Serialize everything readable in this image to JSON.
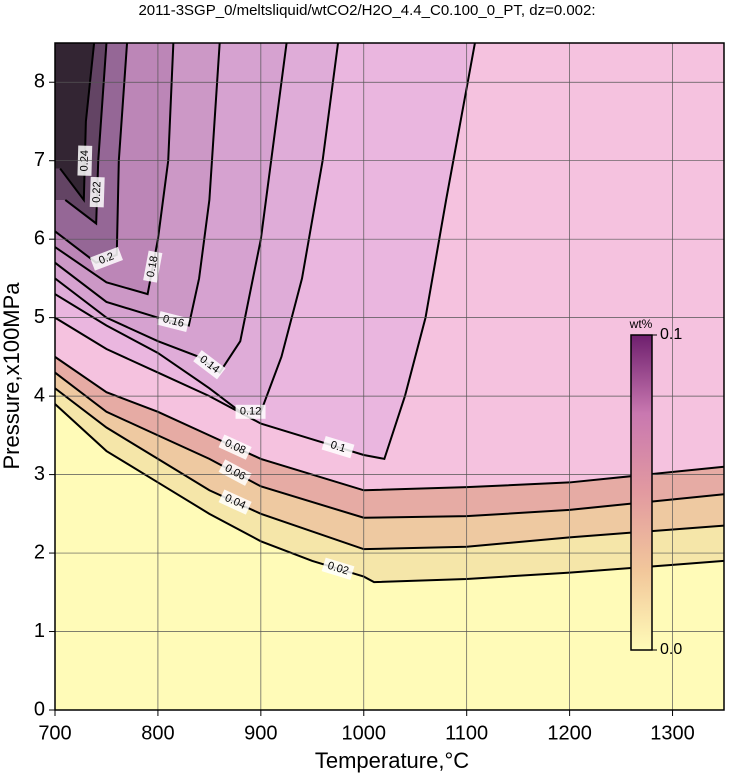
{
  "chart_data": {
    "type": "contour",
    "title": "2011-3SGP_0/meltsliquid/wtCO2/H2O_4.4_C0.100_0_PT, dz=0.002:",
    "x_label": "Temperature,°C",
    "y_label": "Pressure,x100MPa",
    "xlim": [
      700,
      1350
    ],
    "ylim": [
      0,
      8.5
    ],
    "xticks": [
      700,
      800,
      900,
      1000,
      1100,
      1200,
      1300
    ],
    "yticks": [
      0,
      1,
      2,
      3,
      4,
      5,
      6,
      7,
      8
    ],
    "grid": true,
    "contours": [
      {
        "level": 0.02,
        "color": "#f3e2a6",
        "x": [
          700,
          750,
          800,
          850,
          900,
          950,
          1000,
          1010,
          1100,
          1200,
          1300,
          1350
        ],
        "y": [
          3.9,
          3.3,
          2.9,
          2.5,
          2.15,
          1.9,
          1.7,
          1.63,
          1.67,
          1.75,
          1.85,
          1.9
        ]
      },
      {
        "level": 0.04,
        "color": "#ecc3a0",
        "x": [
          700,
          750,
          800,
          850,
          900,
          1000,
          1100,
          1200,
          1350
        ],
        "y": [
          4.1,
          3.6,
          3.2,
          2.8,
          2.5,
          2.05,
          2.08,
          2.2,
          2.35
        ]
      },
      {
        "level": 0.06,
        "color": "#e4a6a4",
        "x": [
          700,
          750,
          800,
          850,
          900,
          1000,
          1100,
          1200,
          1350
        ],
        "y": [
          4.3,
          3.8,
          3.5,
          3.2,
          2.85,
          2.45,
          2.47,
          2.55,
          2.75
        ]
      },
      {
        "level": 0.08,
        "color": "#f7c6ea",
        "x": [
          700,
          750,
          800,
          850,
          900,
          1000,
          1100,
          1200,
          1350
        ],
        "y": [
          4.5,
          4.05,
          3.8,
          3.5,
          3.2,
          2.8,
          2.84,
          2.9,
          3.1
        ]
      },
      {
        "level": 0.1,
        "color": "#e7b4df",
        "x": [
          700,
          750,
          800,
          850,
          900,
          950,
          1000,
          1020,
          1040,
          1060,
          1080,
          1108
        ],
        "y": [
          5.0,
          4.6,
          4.3,
          4.0,
          3.65,
          3.45,
          3.25,
          3.2,
          4.0,
          5.0,
          6.5,
          8.5
        ]
      },
      {
        "level": 0.12,
        "color": "#ddaad7",
        "x": [
          700,
          750,
          800,
          850,
          880,
          900,
          920,
          940,
          960,
          975
        ],
        "y": [
          5.3,
          4.9,
          4.55,
          4.1,
          3.8,
          3.8,
          4.5,
          5.5,
          7.0,
          8.5
        ]
      },
      {
        "level": 0.14,
        "color": "#d5a0cf",
        "x": [
          700,
          750,
          800,
          840,
          860,
          880,
          900,
          910,
          925
        ],
        "y": [
          5.5,
          5.0,
          4.7,
          4.5,
          4.3,
          4.7,
          6.0,
          7.0,
          8.5
        ]
      },
      {
        "level": 0.16,
        "color": "#ca96c4",
        "x": [
          700,
          750,
          800,
          830,
          840,
          850,
          860
        ],
        "y": [
          5.7,
          5.2,
          5.0,
          4.9,
          5.5,
          6.5,
          8.5
        ]
      },
      {
        "level": 0.18,
        "color": "#b883b4",
        "x": [
          700,
          750,
          790,
          800,
          810,
          815
        ],
        "y": [
          5.9,
          5.45,
          5.3,
          6.0,
          7.0,
          8.5
        ]
      },
      {
        "level": 0.2,
        "color": "#8e6290",
        "x": [
          700,
          740,
          760,
          762,
          770
        ],
        "y": [
          6.1,
          5.7,
          5.8,
          7.0,
          8.5
        ]
      },
      {
        "level": 0.22,
        "color": "#5a3e5c",
        "x": [
          710,
          740,
          742,
          750
        ],
        "y": [
          6.5,
          6.2,
          7.0,
          8.5
        ]
      },
      {
        "level": 0.24,
        "color": "#2a202a",
        "x": [
          705,
          728,
          730,
          738
        ],
        "y": [
          6.9,
          6.5,
          7.5,
          8.5
        ]
      }
    ],
    "colorbar": {
      "label": "wt%",
      "lim": [
        0,
        0.1
      ],
      "ticks": [
        {
          "value": 0,
          "label": "0.0"
        },
        0.1
      ],
      "colors": [
        "#fffbb8",
        "#f2c79b",
        "#e29aa0",
        "#c978b0",
        "#6e1f6e"
      ]
    }
  }
}
